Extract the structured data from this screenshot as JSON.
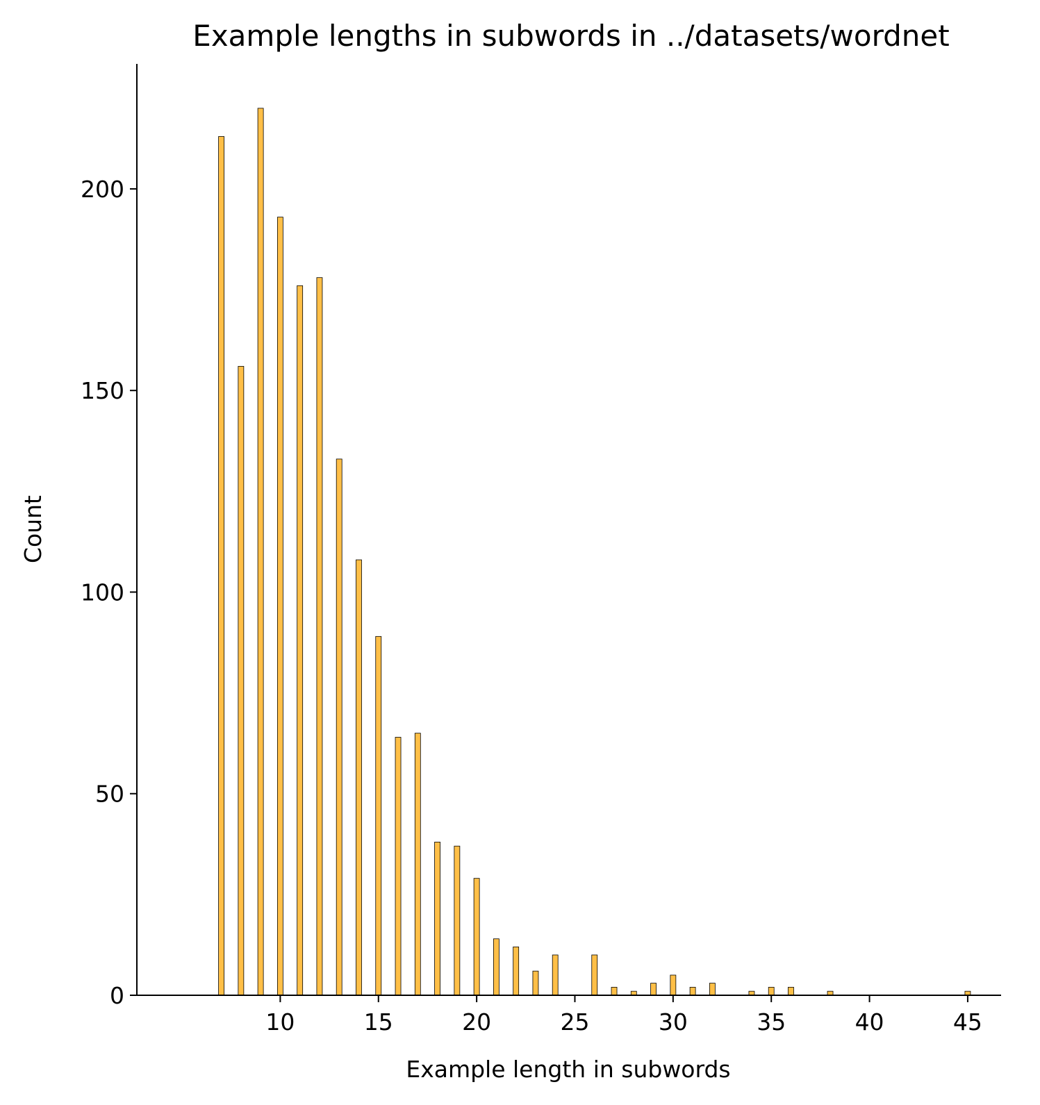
{
  "chart_data": {
    "type": "bar",
    "title": "Example lengths in subwords in ../datasets/wordnet",
    "xlabel": "Example length in subwords",
    "ylabel": "Count",
    "xlim": [
      2.7,
      46.7
    ],
    "ylim": [
      0,
      231
    ],
    "xticks": [
      10,
      15,
      20,
      25,
      30,
      35,
      40,
      45
    ],
    "yticks": [
      0,
      50,
      100,
      150,
      200
    ],
    "grid": false,
    "legend": "none",
    "bar_color": "#FFBF47",
    "edge_color": "#000000",
    "series": [
      {
        "x": [
          7,
          8,
          9,
          10,
          11,
          12,
          13,
          14,
          15,
          16,
          17,
          18,
          19,
          20,
          21,
          22,
          23,
          24,
          26,
          27,
          28,
          29,
          30,
          31,
          32,
          34,
          35,
          36,
          38,
          45
        ],
        "values": [
          213,
          156,
          220,
          193,
          176,
          178,
          133,
          108,
          89,
          64,
          65,
          38,
          37,
          29,
          14,
          12,
          6,
          10,
          10,
          2,
          1,
          3,
          5,
          2,
          3,
          1,
          2,
          2,
          1,
          1
        ]
      }
    ]
  }
}
